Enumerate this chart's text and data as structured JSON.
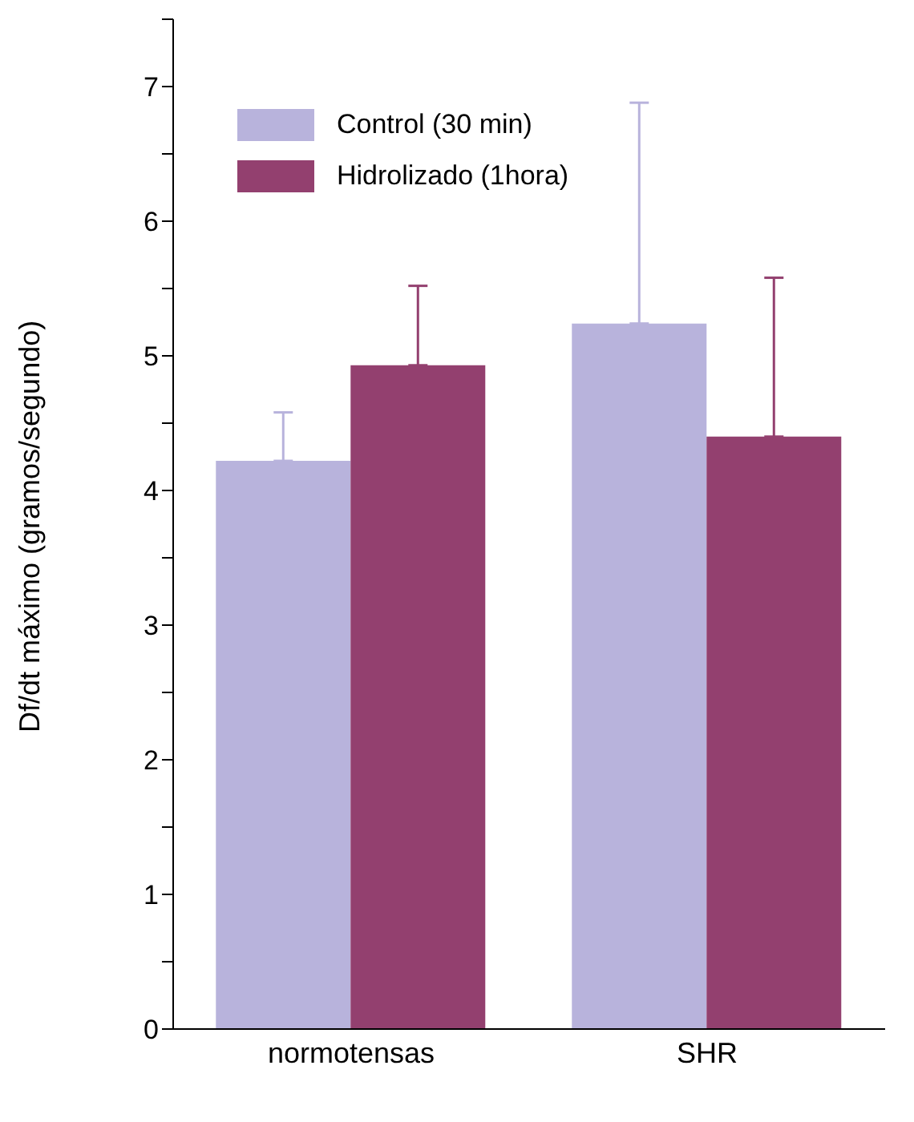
{
  "chart_data": {
    "type": "bar",
    "ylabel": "Df/dt máximo (gramos/segundo)",
    "categories": [
      "normotensas",
      "SHR"
    ],
    "series": [
      {
        "name": "Control (30 min)",
        "color": "#b8b3dc",
        "values": [
          4.22,
          5.24
        ],
        "errors": [
          [
            4.22,
            4.58
          ],
          [
            5.24,
            6.88
          ]
        ]
      },
      {
        "name": "Hidrolizado (1hora)",
        "color": "#93406f",
        "values": [
          4.93,
          4.4
        ],
        "errors": [
          [
            4.93,
            5.52
          ],
          [
            4.4,
            5.58
          ]
        ]
      }
    ],
    "ylim": [
      0,
      7.5
    ],
    "yticks": [
      0,
      {
        "value": 0.5,
        "label": null
      },
      1,
      {
        "value": 1.5,
        "label": null
      },
      2,
      {
        "value": 2.5,
        "label": null
      },
      3,
      {
        "value": 3.5,
        "label": null
      },
      4,
      {
        "value": 4.5,
        "label": null
      },
      5,
      {
        "value": 5.5,
        "label": null
      },
      6,
      {
        "value": 6.5,
        "label": null
      },
      7,
      {
        "value": 7.5,
        "label": null
      }
    ],
    "grid": false,
    "legend": "top left"
  }
}
